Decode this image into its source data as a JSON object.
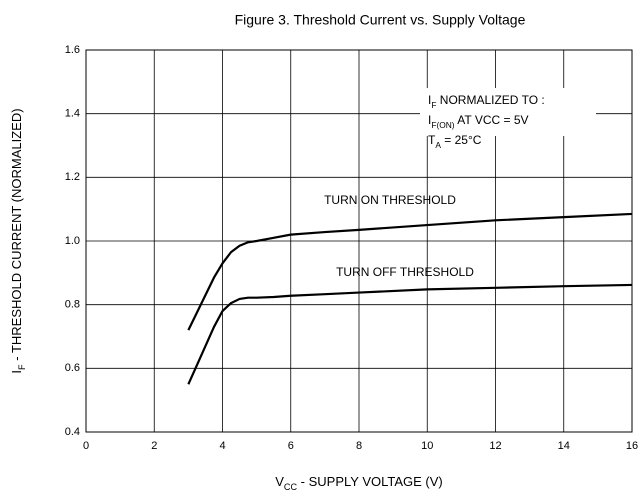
{
  "chart_data": {
    "type": "line",
    "title": "Figure 3. Threshold Current vs. Supply Voltage",
    "x_label": [
      "V",
      "CC",
      " - SUPPLY VOLTAGE (V)"
    ],
    "y_label": [
      "I",
      "F",
      " - THRESHOLD CURRENT (NORMALIZED)"
    ],
    "annotation": [
      [
        "I",
        "F",
        " NORMALIZED TO :"
      ],
      [
        "I",
        "F(ON)",
        " AT VCC = 5V"
      ],
      [
        "T",
        "A",
        " = 25°C"
      ]
    ],
    "xlim": [
      0,
      16
    ],
    "xticks": [
      0,
      2,
      4,
      6,
      8,
      10,
      12,
      14,
      16
    ],
    "ylim": [
      0.4,
      1.6
    ],
    "yticks": [
      0.4,
      0.6,
      0.8,
      {
        "value": 1.0,
        "label": "1.0"
      },
      1.2,
      1.4,
      1.6
    ],
    "grid": true,
    "series": [
      {
        "name": "TURN ON THRESHOLD",
        "color": "#000000",
        "x": [
          3,
          3.25,
          3.5,
          3.75,
          4,
          4.25,
          4.5,
          4.75,
          5,
          5.5,
          6,
          7,
          8,
          10,
          12,
          14,
          16
        ],
        "values": [
          0.72,
          0.775,
          0.83,
          0.885,
          0.93,
          0.965,
          0.985,
          0.996,
          1.0,
          1.01,
          1.02,
          1.028,
          1.035,
          1.05,
          1.065,
          1.075,
          1.085
        ]
      },
      {
        "name": "TURN OFF THRESHOLD",
        "color": "#000000",
        "x": [
          3,
          3.25,
          3.5,
          3.75,
          4,
          4.25,
          4.5,
          4.75,
          5,
          5.5,
          6,
          7,
          8,
          10,
          12,
          14,
          16
        ],
        "values": [
          0.55,
          0.61,
          0.67,
          0.73,
          0.78,
          0.805,
          0.818,
          0.822,
          0.822,
          0.824,
          0.828,
          0.833,
          0.838,
          0.848,
          0.853,
          0.858,
          0.862
        ]
      }
    ]
  }
}
